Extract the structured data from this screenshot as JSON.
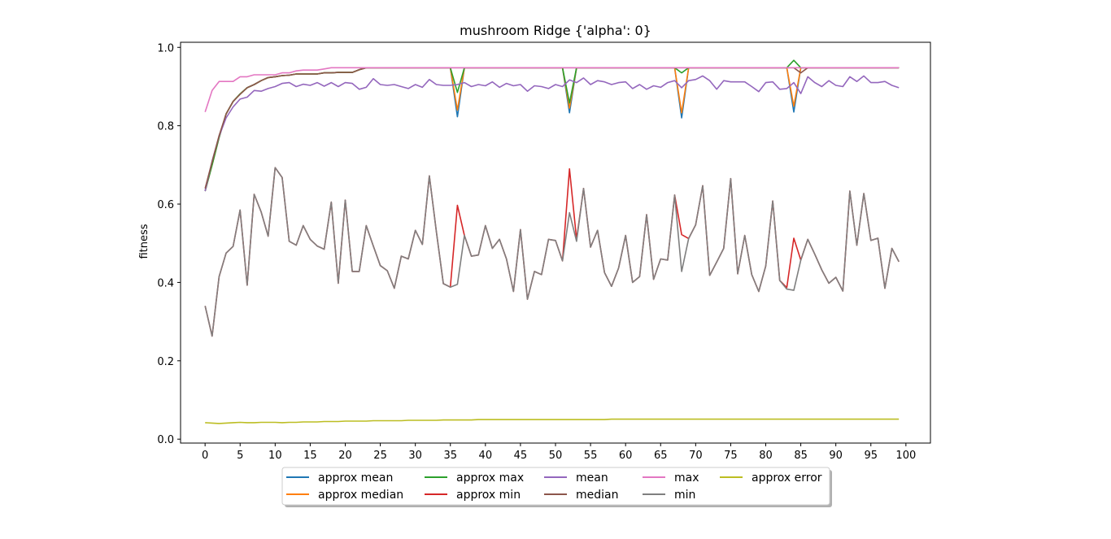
{
  "chart_data": {
    "type": "line",
    "title": "mushroom Ridge {'alpha': 0}",
    "xlabel": "",
    "ylabel": "fitness",
    "xlim": [
      -3.5,
      103.5
    ],
    "ylim": [
      -0.01,
      1.013
    ],
    "xticks": [
      0,
      5,
      10,
      15,
      20,
      25,
      30,
      35,
      40,
      45,
      50,
      55,
      60,
      65,
      70,
      75,
      80,
      85,
      90,
      95,
      100
    ],
    "yticks": [
      0.0,
      0.2,
      0.4,
      0.6,
      0.8,
      1.0
    ],
    "ytick_labels": [
      "0.0",
      "0.2",
      "0.4",
      "0.6",
      "0.8",
      "1.0"
    ],
    "grid": false,
    "legend_position": "bottom-center",
    "legend_columns": 5,
    "x_start": 0,
    "series": [
      {
        "name": "approx mean",
        "color": "#1f77b4",
        "values": [
          0.633,
          0.7,
          0.77,
          0.83,
          0.862,
          0.881,
          0.897,
          0.905,
          0.915,
          0.923,
          0.925,
          0.928,
          0.929,
          0.932,
          0.932,
          0.932,
          0.932,
          0.935,
          0.935,
          0.936,
          0.936,
          0.936,
          0.943,
          0.948,
          0.948,
          0.948,
          0.948,
          0.948,
          0.948,
          0.948,
          0.948,
          0.948,
          0.948,
          0.948,
          0.948,
          0.948,
          0.823,
          0.948,
          0.948,
          0.948,
          0.948,
          0.948,
          0.948,
          0.948,
          0.948,
          0.948,
          0.948,
          0.948,
          0.948,
          0.948,
          0.948,
          0.948,
          0.833,
          0.948,
          0.948,
          0.948,
          0.948,
          0.948,
          0.948,
          0.948,
          0.948,
          0.948,
          0.948,
          0.948,
          0.948,
          0.948,
          0.948,
          0.948,
          0.82,
          0.948,
          0.948,
          0.948,
          0.948,
          0.948,
          0.948,
          0.948,
          0.948,
          0.948,
          0.948,
          0.948,
          0.948,
          0.948,
          0.948,
          0.948,
          0.835,
          0.948,
          0.948,
          0.948,
          0.948,
          0.948,
          0.948,
          0.948,
          0.948,
          0.948,
          0.948,
          0.948,
          0.948,
          0.948,
          0.948,
          0.948
        ]
      },
      {
        "name": "approx median",
        "color": "#ff7f0e",
        "values": [
          0.633,
          0.7,
          0.77,
          0.83,
          0.862,
          0.881,
          0.897,
          0.905,
          0.915,
          0.923,
          0.925,
          0.928,
          0.929,
          0.932,
          0.932,
          0.932,
          0.932,
          0.935,
          0.935,
          0.936,
          0.936,
          0.936,
          0.943,
          0.948,
          0.948,
          0.948,
          0.948,
          0.948,
          0.948,
          0.948,
          0.948,
          0.948,
          0.948,
          0.948,
          0.948,
          0.948,
          0.84,
          0.948,
          0.948,
          0.948,
          0.948,
          0.948,
          0.948,
          0.948,
          0.948,
          0.948,
          0.948,
          0.948,
          0.948,
          0.948,
          0.948,
          0.948,
          0.845,
          0.948,
          0.948,
          0.948,
          0.948,
          0.948,
          0.948,
          0.948,
          0.948,
          0.948,
          0.948,
          0.948,
          0.948,
          0.948,
          0.948,
          0.948,
          0.833,
          0.948,
          0.948,
          0.948,
          0.948,
          0.948,
          0.948,
          0.948,
          0.948,
          0.948,
          0.948,
          0.948,
          0.948,
          0.948,
          0.948,
          0.948,
          0.85,
          0.948,
          0.948,
          0.948,
          0.948,
          0.948,
          0.948,
          0.948,
          0.948,
          0.948,
          0.948,
          0.948,
          0.948,
          0.948,
          0.948,
          0.948
        ]
      },
      {
        "name": "approx max",
        "color": "#2ca02c",
        "values": [
          0.633,
          0.7,
          0.77,
          0.83,
          0.862,
          0.881,
          0.897,
          0.905,
          0.915,
          0.923,
          0.925,
          0.928,
          0.929,
          0.932,
          0.932,
          0.932,
          0.932,
          0.935,
          0.935,
          0.936,
          0.936,
          0.936,
          0.943,
          0.948,
          0.948,
          0.948,
          0.948,
          0.948,
          0.948,
          0.948,
          0.948,
          0.948,
          0.948,
          0.948,
          0.948,
          0.948,
          0.885,
          0.948,
          0.948,
          0.948,
          0.948,
          0.948,
          0.948,
          0.948,
          0.948,
          0.948,
          0.948,
          0.948,
          0.948,
          0.948,
          0.948,
          0.948,
          0.858,
          0.948,
          0.948,
          0.948,
          0.948,
          0.948,
          0.948,
          0.948,
          0.948,
          0.948,
          0.948,
          0.948,
          0.948,
          0.948,
          0.948,
          0.948,
          0.935,
          0.948,
          0.948,
          0.948,
          0.948,
          0.948,
          0.948,
          0.948,
          0.948,
          0.948,
          0.948,
          0.948,
          0.948,
          0.948,
          0.948,
          0.948,
          0.967,
          0.948,
          0.948,
          0.948,
          0.948,
          0.948,
          0.948,
          0.948,
          0.948,
          0.948,
          0.948,
          0.948,
          0.948,
          0.948,
          0.948,
          0.948
        ]
      },
      {
        "name": "approx min",
        "color": "#d62728",
        "values": [
          0.34,
          0.263,
          0.415,
          0.475,
          0.492,
          0.585,
          0.393,
          0.625,
          0.58,
          0.518,
          0.693,
          0.668,
          0.505,
          0.495,
          0.545,
          0.51,
          0.493,
          0.485,
          0.605,
          0.398,
          0.61,
          0.428,
          0.428,
          0.545,
          0.493,
          0.443,
          0.43,
          0.385,
          0.467,
          0.46,
          0.533,
          0.497,
          0.672,
          0.53,
          0.397,
          0.388,
          0.597,
          0.52,
          0.467,
          0.47,
          0.545,
          0.487,
          0.51,
          0.46,
          0.377,
          0.535,
          0.357,
          0.428,
          0.42,
          0.51,
          0.507,
          0.455,
          0.69,
          0.51,
          0.64,
          0.49,
          0.533,
          0.425,
          0.39,
          0.437,
          0.52,
          0.4,
          0.415,
          0.573,
          0.408,
          0.46,
          0.457,
          0.623,
          0.522,
          0.512,
          0.547,
          0.647,
          0.418,
          0.452,
          0.487,
          0.665,
          0.422,
          0.52,
          0.42,
          0.377,
          0.442,
          0.608,
          0.405,
          0.387,
          0.513,
          0.457,
          0.51,
          0.472,
          0.432,
          0.398,
          0.413,
          0.378,
          0.633,
          0.495,
          0.627,
          0.507,
          0.513,
          0.385,
          0.487,
          0.453
        ]
      },
      {
        "name": "mean",
        "color": "#9467bd",
        "values": [
          0.633,
          0.71,
          0.773,
          0.82,
          0.848,
          0.868,
          0.873,
          0.89,
          0.888,
          0.895,
          0.9,
          0.908,
          0.91,
          0.9,
          0.906,
          0.903,
          0.91,
          0.901,
          0.91,
          0.9,
          0.91,
          0.908,
          0.893,
          0.898,
          0.92,
          0.905,
          0.903,
          0.905,
          0.9,
          0.895,
          0.905,
          0.898,
          0.918,
          0.905,
          0.903,
          0.903,
          0.905,
          0.91,
          0.9,
          0.905,
          0.902,
          0.912,
          0.898,
          0.908,
          0.902,
          0.905,
          0.888,
          0.902,
          0.9,
          0.895,
          0.905,
          0.9,
          0.917,
          0.91,
          0.922,
          0.905,
          0.915,
          0.912,
          0.905,
          0.91,
          0.912,
          0.895,
          0.905,
          0.893,
          0.902,
          0.898,
          0.91,
          0.915,
          0.897,
          0.915,
          0.918,
          0.927,
          0.915,
          0.893,
          0.915,
          0.912,
          0.912,
          0.912,
          0.9,
          0.887,
          0.91,
          0.912,
          0.893,
          0.895,
          0.91,
          0.882,
          0.925,
          0.91,
          0.9,
          0.915,
          0.903,
          0.9,
          0.925,
          0.913,
          0.927,
          0.91,
          0.91,
          0.913,
          0.903,
          0.897
        ]
      },
      {
        "name": "median",
        "color": "#8c564b",
        "values": [
          0.64,
          0.708,
          0.775,
          0.83,
          0.862,
          0.88,
          0.897,
          0.905,
          0.915,
          0.923,
          0.925,
          0.928,
          0.929,
          0.932,
          0.932,
          0.932,
          0.932,
          0.935,
          0.935,
          0.936,
          0.936,
          0.936,
          0.943,
          0.948,
          0.948,
          0.948,
          0.948,
          0.948,
          0.948,
          0.948,
          0.948,
          0.948,
          0.948,
          0.948,
          0.948,
          0.948,
          0.948,
          0.948,
          0.948,
          0.948,
          0.948,
          0.948,
          0.948,
          0.948,
          0.948,
          0.948,
          0.948,
          0.948,
          0.948,
          0.948,
          0.948,
          0.948,
          0.948,
          0.948,
          0.948,
          0.948,
          0.948,
          0.948,
          0.948,
          0.948,
          0.948,
          0.948,
          0.948,
          0.948,
          0.948,
          0.948,
          0.948,
          0.948,
          0.948,
          0.948,
          0.948,
          0.948,
          0.948,
          0.948,
          0.948,
          0.948,
          0.948,
          0.948,
          0.948,
          0.948,
          0.948,
          0.948,
          0.948,
          0.948,
          0.948,
          0.935,
          0.948,
          0.948,
          0.948,
          0.948,
          0.948,
          0.948,
          0.948,
          0.948,
          0.948,
          0.948,
          0.948,
          0.948,
          0.948,
          0.948
        ]
      },
      {
        "name": "max",
        "color": "#e377c2",
        "values": [
          0.835,
          0.89,
          0.913,
          0.913,
          0.913,
          0.925,
          0.925,
          0.93,
          0.93,
          0.93,
          0.93,
          0.935,
          0.935,
          0.94,
          0.942,
          0.942,
          0.942,
          0.945,
          0.948,
          0.948,
          0.948,
          0.948,
          0.948,
          0.948,
          0.948,
          0.948,
          0.948,
          0.948,
          0.948,
          0.948,
          0.948,
          0.948,
          0.948,
          0.948,
          0.948,
          0.948,
          0.948,
          0.948,
          0.948,
          0.948,
          0.948,
          0.948,
          0.948,
          0.948,
          0.948,
          0.948,
          0.948,
          0.948,
          0.948,
          0.948,
          0.948,
          0.948,
          0.948,
          0.948,
          0.948,
          0.948,
          0.948,
          0.948,
          0.948,
          0.948,
          0.948,
          0.948,
          0.948,
          0.948,
          0.948,
          0.948,
          0.948,
          0.948,
          0.948,
          0.948,
          0.948,
          0.948,
          0.948,
          0.948,
          0.948,
          0.948,
          0.948,
          0.948,
          0.948,
          0.948,
          0.948,
          0.948,
          0.948,
          0.948,
          0.948,
          0.948,
          0.948,
          0.948,
          0.948,
          0.948,
          0.948,
          0.948,
          0.948,
          0.948,
          0.948,
          0.948,
          0.948,
          0.948,
          0.948,
          0.948
        ]
      },
      {
        "name": "min",
        "color": "#7f7f7f",
        "values": [
          0.34,
          0.263,
          0.415,
          0.475,
          0.492,
          0.585,
          0.393,
          0.625,
          0.58,
          0.518,
          0.693,
          0.668,
          0.505,
          0.495,
          0.545,
          0.51,
          0.493,
          0.485,
          0.605,
          0.398,
          0.61,
          0.428,
          0.428,
          0.545,
          0.493,
          0.443,
          0.43,
          0.385,
          0.467,
          0.46,
          0.533,
          0.497,
          0.672,
          0.53,
          0.397,
          0.388,
          0.395,
          0.52,
          0.467,
          0.47,
          0.545,
          0.487,
          0.51,
          0.46,
          0.377,
          0.535,
          0.357,
          0.428,
          0.42,
          0.51,
          0.507,
          0.455,
          0.578,
          0.505,
          0.64,
          0.49,
          0.533,
          0.425,
          0.39,
          0.437,
          0.52,
          0.4,
          0.415,
          0.573,
          0.408,
          0.46,
          0.457,
          0.623,
          0.428,
          0.512,
          0.547,
          0.647,
          0.418,
          0.452,
          0.487,
          0.665,
          0.422,
          0.52,
          0.42,
          0.377,
          0.442,
          0.608,
          0.405,
          0.383,
          0.38,
          0.457,
          0.51,
          0.472,
          0.432,
          0.398,
          0.413,
          0.378,
          0.633,
          0.495,
          0.627,
          0.507,
          0.513,
          0.385,
          0.487,
          0.453
        ]
      },
      {
        "name": "approx error",
        "color": "#bcbd22",
        "values": [
          0.042,
          0.041,
          0.04,
          0.041,
          0.042,
          0.043,
          0.042,
          0.042,
          0.043,
          0.043,
          0.043,
          0.042,
          0.043,
          0.043,
          0.044,
          0.044,
          0.044,
          0.045,
          0.045,
          0.045,
          0.046,
          0.046,
          0.046,
          0.046,
          0.047,
          0.047,
          0.047,
          0.047,
          0.047,
          0.048,
          0.048,
          0.048,
          0.048,
          0.048,
          0.049,
          0.049,
          0.049,
          0.049,
          0.049,
          0.05,
          0.05,
          0.05,
          0.05,
          0.05,
          0.05,
          0.05,
          0.05,
          0.05,
          0.05,
          0.05,
          0.05,
          0.05,
          0.05,
          0.05,
          0.05,
          0.05,
          0.05,
          0.05,
          0.051,
          0.051,
          0.051,
          0.051,
          0.051,
          0.051,
          0.051,
          0.051,
          0.051,
          0.051,
          0.051,
          0.051,
          0.051,
          0.051,
          0.051,
          0.051,
          0.051,
          0.051,
          0.051,
          0.051,
          0.051,
          0.051,
          0.051,
          0.051,
          0.051,
          0.051,
          0.051,
          0.051,
          0.051,
          0.051,
          0.051,
          0.051,
          0.051,
          0.051,
          0.051,
          0.051,
          0.051,
          0.051,
          0.051,
          0.051,
          0.051,
          0.051
        ]
      }
    ]
  }
}
